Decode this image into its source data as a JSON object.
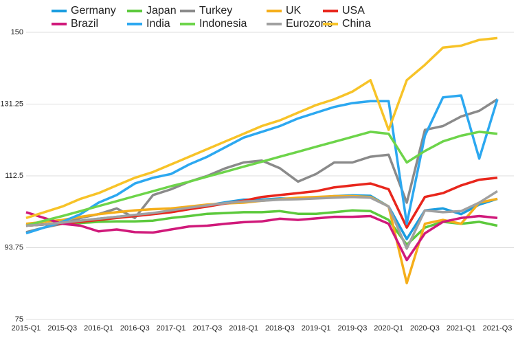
{
  "chart_data": {
    "type": "line",
    "categories": [
      "2015-Q1",
      null,
      "2015-Q3",
      null,
      "2016-Q1",
      null,
      "2016-Q3",
      null,
      "2017-Q1",
      null,
      "2017-Q3",
      null,
      "2018-Q1",
      null,
      "2018-Q3",
      null,
      "2019-Q1",
      null,
      "2019-Q3",
      null,
      "2020-Q1",
      null,
      "2020-Q3",
      null,
      "2021-Q1",
      null,
      "2021-Q3"
    ],
    "ylim": [
      75,
      150
    ],
    "yticks": [
      75,
      93.75,
      112.5,
      131.25,
      150
    ],
    "grid": true,
    "series": [
      {
        "name": "Germany",
        "color": "#1a9de0",
        "values": [
          99.5,
          99.8,
          100.3,
          100.8,
          101.3,
          101.8,
          102.2,
          102.6,
          103.3,
          104,
          104.8,
          105.6,
          106.3,
          106.3,
          106.6,
          106.5,
          106.8,
          107.2,
          107.4,
          107.3,
          104.5,
          96,
          103.5,
          104,
          102.5,
          105,
          106.5
        ]
      },
      {
        "name": "Japan",
        "color": "#5cc93c",
        "values": [
          99.5,
          99.8,
          100,
          100.2,
          100.5,
          100.6,
          100.6,
          100.8,
          101.5,
          102,
          102.6,
          102.8,
          103,
          103,
          103.3,
          102.6,
          102.6,
          103,
          103.5,
          103.3,
          101,
          94.5,
          99,
          100.5,
          100,
          100.5,
          99.5
        ]
      },
      {
        "name": "Turkey",
        "color": "#8a8a8a",
        "values": [
          97.8,
          99,
          100,
          101.5,
          102.5,
          104,
          101.5,
          107.5,
          109,
          111,
          112.5,
          114.5,
          116,
          116.5,
          114.5,
          111,
          113,
          116,
          116,
          117.5,
          118,
          105.5,
          124.5,
          125.5,
          128,
          129.5,
          132.5
        ]
      },
      {
        "name": "UK",
        "color": "#f5ae1a",
        "values": [
          100,
          100.5,
          101,
          101.8,
          102.5,
          103,
          103.5,
          103.8,
          104,
          104.5,
          105,
          105.3,
          105.5,
          106,
          106.4,
          106.8,
          107,
          107.2,
          107.2,
          107,
          104.5,
          84.5,
          100,
          101,
          100,
          105.5,
          106.5
        ]
      },
      {
        "name": "USA",
        "color": "#e8261c",
        "values": [
          99.5,
          99.8,
          100,
          100.5,
          101,
          101.5,
          102,
          102.5,
          103,
          103.8,
          104.5,
          105.3,
          106,
          107,
          107.5,
          108,
          108.5,
          109.5,
          110,
          110.5,
          109,
          99,
          107,
          108,
          110,
          111.5,
          112
        ]
      },
      {
        "name": "Brazil",
        "color": "#d0197a",
        "values": [
          103,
          101.5,
          100,
          99.5,
          98,
          98.5,
          97.8,
          97.7,
          98.5,
          99.3,
          99.5,
          100,
          100.4,
          100.6,
          101.3,
          101,
          101.4,
          101.8,
          101.8,
          102,
          100,
          90.5,
          97.5,
          100.5,
          101.5,
          102,
          101.5
        ]
      },
      {
        "name": "India",
        "color": "#2ca8f0",
        "values": [
          97.5,
          99,
          100.5,
          102.5,
          105.5,
          107.5,
          110.5,
          112,
          113,
          115.5,
          117.5,
          120,
          122.5,
          124,
          125.5,
          127.5,
          129,
          130.5,
          131.5,
          132,
          132,
          100,
          123,
          133,
          133.5,
          117,
          132.5
        ]
      },
      {
        "name": "Indonesia",
        "color": "#6dd44a",
        "values": [
          99.5,
          100.8,
          102,
          103.3,
          104.6,
          105.9,
          107.2,
          108.5,
          109.8,
          111,
          112.3,
          113.6,
          114.9,
          116.2,
          117.5,
          118.8,
          120.1,
          121.4,
          122.7,
          124,
          123.5,
          116,
          119,
          121.5,
          123,
          124,
          123.5
        ]
      },
      {
        "name": "Eurozone",
        "color": "#a0a0a0",
        "values": [
          99.5,
          99.8,
          100.3,
          100.8,
          101.3,
          101.8,
          102.3,
          102.8,
          103.5,
          104.2,
          104.8,
          105.4,
          105.8,
          106,
          106.3,
          106.4,
          106.6,
          106.8,
          107,
          106.8,
          104.5,
          93.5,
          103.5,
          103,
          103.3,
          105.5,
          108.5
        ]
      },
      {
        "name": "China",
        "color": "#f7c328",
        "values": [
          101.5,
          103,
          104.5,
          106.5,
          108,
          110,
          112,
          113.5,
          115.5,
          117.5,
          119.5,
          121.5,
          123.5,
          125.5,
          127,
          129,
          131,
          132.5,
          134.5,
          137.5,
          124.5,
          137.5,
          141.5,
          146,
          146.5,
          148,
          148.5
        ]
      }
    ]
  }
}
